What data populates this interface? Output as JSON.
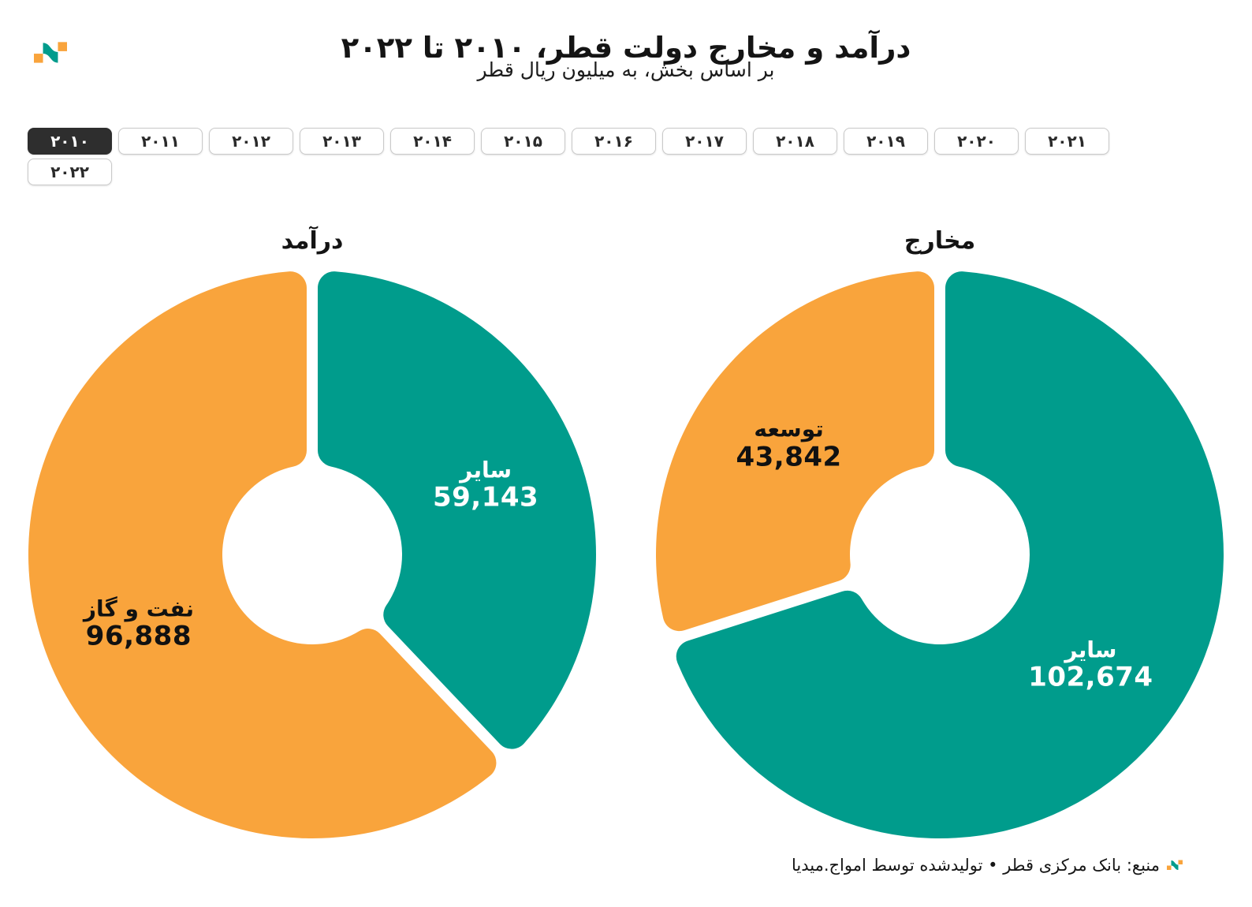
{
  "colors": {
    "teal": "#009C8C",
    "orange": "#F9A43C",
    "selected_year_bg": "#2E2E2E",
    "button_border": "#C9C9C9",
    "text_dark": "#111111"
  },
  "header": {
    "title": "درآمد و مخارج دولت قطر، ۲۰۱۰ تا ۲۰۲۲",
    "subtitle": "بر اساس بخش، به میلیون ریال قطر"
  },
  "icons": {
    "header_logo": "amwaj-wave-logo-icon",
    "footer_logo": "amwaj-wave-logo-icon"
  },
  "year_selector": {
    "selected": "۲۰۱۰",
    "years": [
      "۲۰۱۰",
      "۲۰۱۱",
      "۲۰۱۲",
      "۲۰۱۳",
      "۲۰۱۴",
      "۲۰۱۵",
      "۲۰۱۶",
      "۲۰۱۷",
      "۲۰۱۸",
      "۲۰۱۹",
      "۲۰۲۰",
      "۲۰۲۱",
      "۲۰۲۲"
    ]
  },
  "chart_data": [
    {
      "type": "pie",
      "donut": true,
      "title": "درآمد",
      "units": "میلیون ریال قطر",
      "start_angle_deg": 0,
      "direction": "clockwise",
      "legend": "none",
      "slices": [
        {
          "label": "سایر",
          "value": 59143,
          "display_value": "59,143",
          "color": "teal",
          "label_text_color": "#FFFFFF"
        },
        {
          "label": "نفت و گاز",
          "value": 96888,
          "display_value": "96,888",
          "color": "orange",
          "label_text_color": "#111111"
        }
      ]
    },
    {
      "type": "pie",
      "donut": true,
      "title": "مخارج",
      "units": "میلیون ریال قطر",
      "start_angle_deg": 0,
      "direction": "clockwise",
      "legend": "none",
      "slices": [
        {
          "label": "سایر",
          "value": 102674,
          "display_value": "102,674",
          "color": "teal",
          "label_text_color": "#FFFFFF"
        },
        {
          "label": "توسعه",
          "value": 43842,
          "display_value": "43,842",
          "color": "orange",
          "label_text_color": "#111111"
        }
      ]
    }
  ],
  "footer": {
    "text": "منبع: بانک مرکزی قطر • تولیدشده توسط امواج.میدیا"
  }
}
